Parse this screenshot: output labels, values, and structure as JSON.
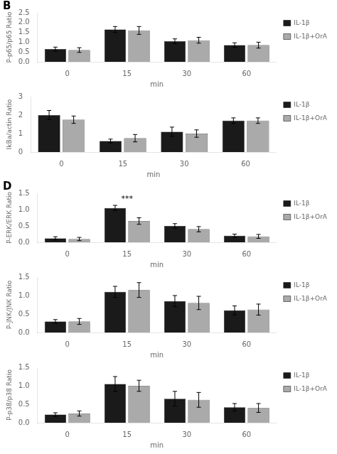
{
  "chart_data": [
    {
      "type": "bar",
      "ylabel": "P-p65/p65 Ratio",
      "xlabel": "min",
      "categories": [
        "0",
        "15",
        "30",
        "60"
      ],
      "series": [
        {
          "name": "IL-1β",
          "color": "#1a1a1a",
          "values": [
            0.65,
            1.65,
            1.05,
            0.85
          ],
          "errors": [
            0.1,
            0.15,
            0.12,
            0.12
          ]
        },
        {
          "name": "IL-1β+OrA",
          "color": "#aaaaaa",
          "values": [
            0.6,
            1.6,
            1.1,
            0.85
          ],
          "errors": [
            0.12,
            0.2,
            0.15,
            0.15
          ]
        }
      ],
      "ylim": [
        0,
        2.5
      ],
      "yticks": [
        {
          "value": 0,
          "label": "0.0"
        },
        0.5,
        {
          "value": 1,
          "label": "1.0"
        },
        1.5,
        {
          "value": 2,
          "label": "2.0"
        },
        2.5
      ],
      "grid": false,
      "legend": "upper right",
      "annotations": [
        {
          "text": "B"
        }
      ]
    },
    {
      "type": "bar",
      "ylabel": "IkBa/actin Ratio",
      "xlabel": "min",
      "categories": [
        "0",
        "15",
        "30",
        "60"
      ],
      "series": [
        {
          "name": "IL-1β",
          "color": "#1a1a1a",
          "values": [
            2.0,
            0.6,
            1.1,
            1.7
          ],
          "errors": [
            0.25,
            0.1,
            0.25,
            0.15
          ]
        },
        {
          "name": "IL-1β+OrA",
          "color": "#aaaaaa",
          "values": [
            1.75,
            0.75,
            1.0,
            1.7
          ],
          "errors": [
            0.2,
            0.2,
            0.2,
            0.15
          ]
        }
      ],
      "ylim": [
        0,
        3
      ],
      "yticks": [
        0,
        1,
        2,
        3
      ],
      "grid": false,
      "legend": "upper right"
    },
    {
      "type": "bar",
      "ylabel": "P-ERK/ERK Ratio",
      "xlabel": "min",
      "categories": [
        "0",
        "15",
        "30",
        "60"
      ],
      "series": [
        {
          "name": "IL-1β",
          "color": "#1a1a1a",
          "values": [
            0.12,
            1.05,
            0.5,
            0.2
          ],
          "errors": [
            0.05,
            0.08,
            0.07,
            0.05
          ]
        },
        {
          "name": "IL-1β+OrA",
          "color": "#aaaaaa",
          "values": [
            0.1,
            0.65,
            0.4,
            0.18
          ],
          "errors": [
            0.05,
            0.1,
            0.08,
            0.06
          ]
        }
      ],
      "ylim": [
        0,
        1.5
      ],
      "yticks": [
        {
          "value": 0,
          "label": "0.0"
        },
        0.5,
        {
          "value": 1,
          "label": "1.0"
        },
        1.5
      ],
      "grid": false,
      "legend": "upper right",
      "annotations": [
        {
          "text": "D"
        },
        {
          "text": "***",
          "x": "15"
        }
      ]
    },
    {
      "type": "bar",
      "ylabel": "P-JNK/JNK Ratio",
      "xlabel": "min",
      "categories": [
        "0",
        "15",
        "30",
        "60"
      ],
      "series": [
        {
          "name": "IL-1β",
          "color": "#1a1a1a",
          "values": [
            0.3,
            1.1,
            0.85,
            0.6
          ],
          "errors": [
            0.05,
            0.15,
            0.15,
            0.12
          ]
        },
        {
          "name": "IL-1β+OrA",
          "color": "#aaaaaa",
          "values": [
            0.3,
            1.15,
            0.8,
            0.62
          ],
          "errors": [
            0.08,
            0.2,
            0.18,
            0.15
          ]
        }
      ],
      "ylim": [
        0,
        1.5
      ],
      "yticks": [
        {
          "value": 0,
          "label": "0.0"
        },
        0.5,
        {
          "value": 1,
          "label": "1.0"
        },
        1.5
      ],
      "grid": false,
      "legend": "upper right"
    },
    {
      "type": "bar",
      "ylabel": "P-p38/p38 Ratio",
      "xlabel": "min",
      "categories": [
        "0",
        "15",
        "30",
        "60"
      ],
      "series": [
        {
          "name": "IL-1β",
          "color": "#1a1a1a",
          "values": [
            0.22,
            1.05,
            0.65,
            0.42
          ],
          "errors": [
            0.05,
            0.2,
            0.2,
            0.1
          ]
        },
        {
          "name": "IL-1β+OrA",
          "color": "#aaaaaa",
          "values": [
            0.25,
            1.0,
            0.62,
            0.4
          ],
          "errors": [
            0.07,
            0.15,
            0.2,
            0.12
          ]
        }
      ],
      "ylim": [
        0,
        1.5
      ],
      "yticks": [
        {
          "value": 0,
          "label": "0.0"
        },
        0.5,
        {
          "value": 1,
          "label": "1.0"
        },
        1.5
      ],
      "grid": false,
      "legend": "upper right"
    }
  ]
}
